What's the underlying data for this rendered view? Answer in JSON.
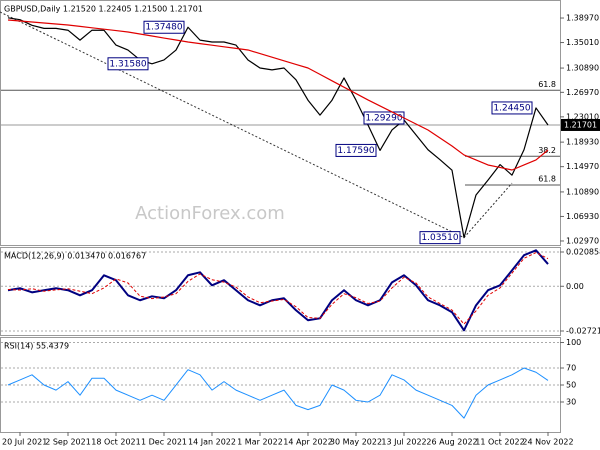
{
  "chart_data": [
    {
      "type": "line",
      "title": "GBPUSD,Daily  1.21520 1.22405 1.21500 1.21701",
      "watermark": "ActionForex.com",
      "ylim": [
        1.0232,
        1.4188
      ],
      "yticks": [
        {
          "value": 1.3897,
          "label": "1.38970"
        },
        {
          "value": 1.3501,
          "label": "1.35010"
        },
        {
          "value": 1.3089,
          "label": "1.30890"
        },
        {
          "value": 1.2697,
          "label": "1.26970"
        },
        {
          "value": 1.2301,
          "label": "1.23010"
        },
        {
          "value": 1.1893,
          "label": "1.18930"
        },
        {
          "value": 1.1497,
          "label": "1.14970"
        },
        {
          "value": 1.1089,
          "label": "1.10890"
        },
        {
          "value": 1.0693,
          "label": "1.06930"
        },
        {
          "value": 1.0297,
          "label": "1.02970"
        }
      ],
      "grid": false,
      "last_price": 1.21701,
      "levels": [
        {
          "value": 1.273,
          "label": "61.8"
        },
        {
          "value": 1.1665,
          "label": "38.2"
        },
        {
          "value": 1.12,
          "label": "61.8"
        }
      ],
      "series": [
        {
          "color": "#000000",
          "values": [
            1.39,
            1.387,
            1.378,
            1.373,
            1.373,
            1.37,
            1.354,
            1.37,
            1.37,
            1.346,
            1.338,
            1.322,
            1.3158,
            1.322,
            1.338,
            1.3748,
            1.354,
            1.351,
            1.351,
            1.346,
            1.322,
            1.309,
            1.306,
            1.309,
            1.29,
            1.257,
            1.233,
            1.257,
            1.2929,
            1.257,
            1.217,
            1.1759,
            1.209,
            1.225,
            1.201,
            1.177,
            1.161,
            1.144,
            1.0351,
            1.104,
            1.128,
            1.153,
            1.136,
            1.177,
            1.2445,
            1.217
          ],
          "value_labels": [
            null,
            null,
            null,
            null,
            null,
            null,
            null,
            null,
            null,
            null,
            null,
            null,
            "1.31580",
            null,
            null,
            "1.37480",
            null,
            null,
            null,
            null,
            null,
            null,
            null,
            null,
            null,
            null,
            null,
            null,
            "1.29290",
            null,
            null,
            "1.17590",
            null,
            null,
            null,
            null,
            null,
            null,
            "1.03510",
            null,
            null,
            null,
            null,
            null,
            "1.24450",
            null
          ]
        },
        {
          "color": "#e00000",
          "values": [
            1.3865,
            1.3849,
            1.3833,
            1.3817,
            1.3801,
            1.3784,
            1.3762,
            1.3739,
            1.3717,
            1.3694,
            1.3671,
            1.3639,
            1.3607,
            1.3574,
            1.3542,
            1.351,
            1.3484,
            1.3458,
            1.3432,
            1.3407,
            1.3381,
            1.3323,
            1.3265,
            1.3206,
            1.3148,
            1.309,
            1.2987,
            1.2883,
            1.278,
            1.2677,
            1.2574,
            1.2477,
            1.238,
            1.2283,
            1.2186,
            1.2089,
            1.196,
            1.1831,
            1.1686,
            1.1605,
            1.1524,
            1.1484,
            1.1443,
            1.1524,
            1.1605,
            1.1766
          ]
        }
      ]
    },
    {
      "type": "line",
      "title": "MACD(12,26,9) 0.013470 0.016767",
      "ylim": [
        -0.02965,
        0.0239
      ],
      "yticks": [
        0.020858,
        {
          "value": 0,
          "label": "0.00"
        },
        -0.027213
      ],
      "grid": true,
      "series": [
        {
          "color": "#000080",
          "width": 2,
          "values": [
            -0.0024,
            -0.0012,
            -0.0037,
            -0.0024,
            -0.0012,
            -0.0024,
            -0.0055,
            -0.0024,
            0.0067,
            0.0037,
            -0.0055,
            -0.0085,
            -0.0061,
            -0.0073,
            -0.0024,
            0.0067,
            0.0085,
            0.0006,
            0.0037,
            -0.0024,
            -0.0085,
            -0.0116,
            -0.0085,
            -0.0073,
            -0.0146,
            -0.0207,
            -0.0195,
            -0.0085,
            -0.0024,
            -0.0085,
            -0.0116,
            -0.0085,
            0.0024,
            0.0067,
            0.0006,
            -0.0085,
            -0.0116,
            -0.0158,
            -0.0268,
            -0.0116,
            -0.0024,
            0.0006,
            0.0097,
            0.0189,
            0.0219,
            0.0135
          ]
        },
        {
          "color": "#e00000",
          "width": 1,
          "style": "dashed",
          "values": [
            -0.002,
            -0.0023,
            -0.0015,
            -0.003,
            -0.0022,
            -0.0015,
            -0.003,
            -0.0045,
            -0.001,
            0.0045,
            0.002,
            -0.006,
            -0.0075,
            -0.0065,
            -0.0045,
            0.003,
            0.0075,
            0.004,
            0.0025,
            -0.0005,
            -0.0065,
            -0.01,
            -0.009,
            -0.008,
            -0.0125,
            -0.019,
            -0.0195,
            -0.011,
            -0.0045,
            -0.007,
            -0.0105,
            -0.009,
            -0.001,
            0.0055,
            0.002,
            -0.0065,
            -0.0105,
            -0.0145,
            -0.023,
            -0.015,
            -0.0055,
            -0.001,
            0.008,
            0.017,
            0.0205,
            0.0168
          ]
        }
      ]
    },
    {
      "type": "line",
      "title": "RSI(14) 55.4379",
      "ylim": [
        -5.3,
        106.5
      ],
      "yticks": [
        100,
        70,
        50,
        30
      ],
      "grid": true,
      "categories": [
        null,
        "20 Jul 2021",
        null,
        null,
        null,
        "2 Sep 2021",
        null,
        null,
        null,
        "18 Oct 2021",
        null,
        null,
        null,
        "1 Dec 2021",
        null,
        null,
        null,
        "14 Jan 2022",
        null,
        null,
        null,
        "1 Mar 2022",
        null,
        null,
        null,
        "14 Apr 2022",
        null,
        null,
        null,
        "30 May 2022",
        null,
        null,
        null,
        "13 Jul 2022",
        null,
        null,
        null,
        "26 Aug 2022",
        null,
        null,
        null,
        "11 Oct 2022",
        null,
        null,
        null,
        "24 Nov 2022"
      ],
      "series": [
        {
          "color": "#1e90ff",
          "width": 1,
          "values": [
            50,
            56,
            62,
            50,
            44,
            54,
            38,
            58,
            58,
            44,
            38,
            32,
            38,
            32,
            50,
            68,
            62,
            44,
            54,
            44,
            38,
            32,
            38,
            44,
            26,
            21,
            26,
            50,
            44,
            32,
            30,
            38,
            62,
            56,
            44,
            38,
            32,
            26,
            11,
            38,
            50,
            56,
            62,
            70,
            65,
            55.4
          ]
        }
      ]
    }
  ]
}
